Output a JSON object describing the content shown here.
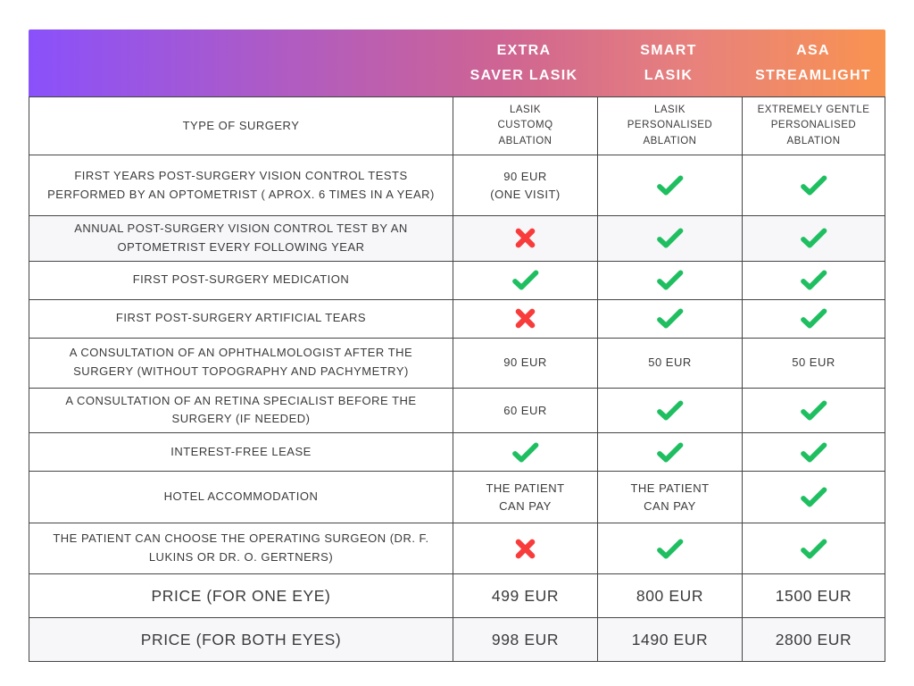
{
  "header": {
    "gradient": {
      "from": "#8a51fb",
      "mid": "#ce6493",
      "coral": "#e8827b",
      "to": "#f99350"
    },
    "columns": [
      "EXTRA\nSAVER LASIK",
      "SMART\nLASIK",
      "ASA\nSTREAMLIGHT"
    ]
  },
  "icons": {
    "check_name": "check-icon",
    "cross_name": "cross-icon",
    "check_color": "#1fbf61",
    "cross_color": "#f83c3c"
  },
  "colors": {
    "row_shade": "#f7f6f9",
    "border": "#454545",
    "text": "#3b3b3b"
  },
  "table": {
    "rows": [
      {
        "label": "TYPE OF SURGERY",
        "size": "small",
        "shaded": false,
        "cells": [
          {
            "type": "text",
            "text": "LASIK\nCUSTOMQ\nABLATION"
          },
          {
            "type": "text",
            "text": "LASIK\nPERSONALISED\nABLATION"
          },
          {
            "type": "text",
            "text": "EXTREMELY GENTLE\nPERSONALISED\nABLATION"
          }
        ]
      },
      {
        "label": "FIRST YEARS POST-SURGERY VISION CONTROL TESTS PERFORMED BY AN OPTOMETRIST ( APROX. 6 TIMES IN A YEAR)",
        "size": "normal",
        "shaded": false,
        "cells": [
          {
            "type": "text",
            "text": "90 EUR\n(ONE VISIT)"
          },
          {
            "type": "check"
          },
          {
            "type": "check"
          }
        ]
      },
      {
        "label": "ANNUAL POST-SURGERY VISION CONTROL TEST BY AN OPTOMETRIST EVERY FOLLOWING YEAR",
        "size": "normal",
        "shaded": true,
        "cells": [
          {
            "type": "cross"
          },
          {
            "type": "check"
          },
          {
            "type": "check"
          }
        ]
      },
      {
        "label": "FIRST POST-SURGERY MEDICATION",
        "size": "normal",
        "shaded": false,
        "cells": [
          {
            "type": "check"
          },
          {
            "type": "check"
          },
          {
            "type": "check"
          }
        ]
      },
      {
        "label": "FIRST POST-SURGERY ARTIFICIAL TEARS",
        "size": "normal",
        "shaded": false,
        "cells": [
          {
            "type": "cross"
          },
          {
            "type": "check"
          },
          {
            "type": "check"
          }
        ]
      },
      {
        "label": "A CONSULTATION OF AN OPHTHALMOLOGIST AFTER THE SURGERY (WITHOUT TOPOGRAPHY AND PACHYMETRY)",
        "size": "normal",
        "shaded": false,
        "cells": [
          {
            "type": "text",
            "text": "90 EUR"
          },
          {
            "type": "text",
            "text": "50 EUR"
          },
          {
            "type": "text",
            "text": "50 EUR"
          }
        ]
      },
      {
        "label": "A CONSULTATION OF AN RETINA SPECIALIST BEFORE THE SURGERY (IF NEEDED)",
        "size": "normal",
        "shaded": false,
        "cells": [
          {
            "type": "text",
            "text": "60 EUR"
          },
          {
            "type": "check"
          },
          {
            "type": "check"
          }
        ]
      },
      {
        "label": "INTEREST-FREE LEASE",
        "size": "normal",
        "shaded": false,
        "cells": [
          {
            "type": "check"
          },
          {
            "type": "check"
          },
          {
            "type": "check"
          }
        ]
      },
      {
        "label": "HOTEL ACCOMMODATION",
        "size": "normal",
        "shaded": false,
        "cells": [
          {
            "type": "text",
            "text": "THE PATIENT\nCAN PAY"
          },
          {
            "type": "text",
            "text": "THE PATIENT\nCAN PAY"
          },
          {
            "type": "check"
          }
        ]
      },
      {
        "label": "THE PATIENT CAN CHOOSE THE OPERATING SURGEON (DR. F. LUKINS OR DR. O. GERTNERS)",
        "size": "normal",
        "shaded": false,
        "cells": [
          {
            "type": "cross"
          },
          {
            "type": "check"
          },
          {
            "type": "check"
          }
        ]
      },
      {
        "label": "PRICE (FOR ONE EYE)",
        "size": "large",
        "shaded": false,
        "cells": [
          {
            "type": "text",
            "text": "499 EUR"
          },
          {
            "type": "text",
            "text": "800 EUR"
          },
          {
            "type": "text",
            "text": "1500 EUR"
          }
        ]
      },
      {
        "label": "PRICE (FOR BOTH EYES)",
        "size": "large",
        "shaded": true,
        "cells": [
          {
            "type": "text",
            "text": "998 EUR"
          },
          {
            "type": "text",
            "text": "1490 EUR"
          },
          {
            "type": "text",
            "text": "2800 EUR"
          }
        ]
      }
    ]
  },
  "chart_data": {
    "type": "table",
    "title": "LASIK surgery packages comparison",
    "column_headers": [
      "",
      "EXTRA SAVER LASIK",
      "SMART LASIK",
      "ASA STREAMLIGHT"
    ],
    "rows": [
      [
        "TYPE OF SURGERY",
        "LASIK CUSTOMQ ABLATION",
        "LASIK PERSONALISED ABLATION",
        "EXTREMELY GENTLE PERSONALISED ABLATION"
      ],
      [
        "FIRST YEARS POST-SURGERY VISION CONTROL TESTS PERFORMED BY AN OPTOMETRIST ( APROX. 6 TIMES IN A YEAR)",
        "90 EUR (ONE VISIT)",
        "yes",
        "yes"
      ],
      [
        "ANNUAL POST-SURGERY VISION CONTROL TEST BY AN OPTOMETRIST EVERY FOLLOWING YEAR",
        "no",
        "yes",
        "yes"
      ],
      [
        "FIRST POST-SURGERY MEDICATION",
        "yes",
        "yes",
        "yes"
      ],
      [
        "FIRST POST-SURGERY ARTIFICIAL TEARS",
        "no",
        "yes",
        "yes"
      ],
      [
        "A CONSULTATION OF AN OPHTHALMOLOGIST AFTER THE SURGERY (WITHOUT TOPOGRAPHY AND PACHYMETRY)",
        "90 EUR",
        "50 EUR",
        "50 EUR"
      ],
      [
        "A CONSULTATION OF AN RETINA SPECIALIST BEFORE THE SURGERY (IF NEEDED)",
        "60 EUR",
        "yes",
        "yes"
      ],
      [
        "INTEREST-FREE LEASE",
        "yes",
        "yes",
        "yes"
      ],
      [
        "HOTEL ACCOMMODATION",
        "THE PATIENT CAN PAY",
        "THE PATIENT CAN PAY",
        "yes"
      ],
      [
        "THE PATIENT CAN CHOOSE THE OPERATING SURGEON (DR. F. LUKINS OR DR. O. GERTNERS)",
        "no",
        "yes",
        "yes"
      ],
      [
        "PRICE (FOR ONE EYE)",
        "499 EUR",
        "800 EUR",
        "1500 EUR"
      ],
      [
        "PRICE (FOR BOTH EYES)",
        "998 EUR",
        "1490 EUR",
        "2800 EUR"
      ]
    ]
  }
}
